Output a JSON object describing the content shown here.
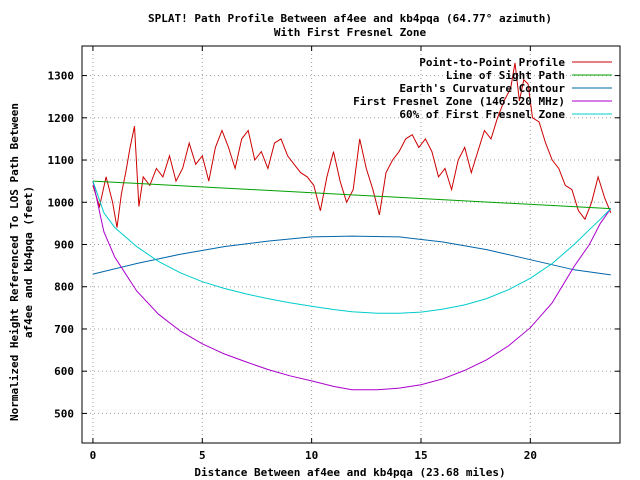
{
  "chart_data": {
    "type": "line",
    "title": "SPLAT! Path Profile Between af4ee and kb4pqa (64.77° azimuth)",
    "subtitle": "With First Fresnel Zone",
    "xlabel": "Distance Between af4ee and kb4pqa (23.68 miles)",
    "ylabel_line1": "Normalized Height Referenced To LOS Path Between",
    "ylabel_line2": "af4ee and kb4pqa (feet)",
    "xlim": [
      -0.5,
      24.1
    ],
    "ylim": [
      430,
      1370
    ],
    "x_ticks": [
      0,
      5,
      10,
      15,
      20
    ],
    "y_ticks": [
      500,
      600,
      700,
      800,
      900,
      1000,
      1100,
      1200,
      1300
    ],
    "grid": true,
    "legend_position": "top-right",
    "series": [
      {
        "name": "Point-to-Point Profile",
        "color": "#cc0000",
        "x": [
          0,
          0.3,
          0.6,
          0.9,
          1.1,
          1.3,
          1.5,
          1.7,
          1.9,
          2.1,
          2.3,
          2.6,
          2.9,
          3.2,
          3.5,
          3.8,
          4.1,
          4.4,
          4.7,
          5.0,
          5.3,
          5.6,
          5.9,
          6.2,
          6.5,
          6.8,
          7.1,
          7.4,
          7.7,
          8.0,
          8.3,
          8.6,
          8.9,
          9.2,
          9.5,
          9.8,
          10.1,
          10.4,
          10.7,
          11.0,
          11.3,
          11.6,
          11.9,
          12.2,
          12.5,
          12.8,
          13.1,
          13.4,
          13.7,
          14.0,
          14.3,
          14.6,
          14.9,
          15.2,
          15.5,
          15.8,
          16.1,
          16.4,
          16.7,
          17.0,
          17.3,
          17.6,
          17.9,
          18.2,
          18.5,
          18.8,
          19.1,
          19.3,
          19.5,
          19.7,
          19.9,
          20.1,
          20.4,
          20.7,
          21.0,
          21.3,
          21.6,
          21.9,
          22.2,
          22.5,
          22.8,
          23.1,
          23.4,
          23.68
        ],
        "y": [
          1040,
          990,
          1060,
          1000,
          940,
          1020,
          1070,
          1130,
          1180,
          990,
          1060,
          1040,
          1080,
          1060,
          1110,
          1050,
          1080,
          1140,
          1090,
          1110,
          1050,
          1130,
          1170,
          1130,
          1080,
          1150,
          1170,
          1100,
          1120,
          1080,
          1140,
          1150,
          1110,
          1090,
          1070,
          1060,
          1040,
          980,
          1060,
          1120,
          1050,
          1000,
          1030,
          1150,
          1080,
          1030,
          970,
          1070,
          1100,
          1120,
          1150,
          1160,
          1130,
          1150,
          1120,
          1060,
          1080,
          1030,
          1100,
          1130,
          1070,
          1120,
          1170,
          1150,
          1200,
          1240,
          1270,
          1330,
          1240,
          1290,
          1280,
          1200,
          1190,
          1140,
          1100,
          1080,
          1040,
          1030,
          980,
          960,
          1000,
          1060,
          1010,
          975
        ]
      },
      {
        "name": "Line of Sight Path",
        "color": "#00a000",
        "x": [
          0,
          23.68
        ],
        "y": [
          1050,
          985
        ]
      },
      {
        "name": "Earth's Curvature Contour",
        "color": "#0066aa",
        "x": [
          0,
          2,
          4,
          6,
          8,
          10,
          11.84,
          14,
          16,
          18,
          20,
          22,
          23.68
        ],
        "y": [
          830,
          855,
          877,
          895,
          908,
          918,
          920,
          918,
          906,
          888,
          864,
          840,
          828
        ]
      },
      {
        "name": "First Fresnel Zone (146.520 MHz)",
        "color": "#aa00cc",
        "x": [
          0,
          0.5,
          1,
          2,
          3,
          4,
          5,
          6,
          7,
          8,
          9,
          10,
          11,
          11.84,
          13,
          14,
          15,
          16,
          17,
          18,
          19,
          20,
          21,
          22,
          22.7,
          23.2,
          23.68
        ],
        "y": [
          1050,
          930,
          870,
          790,
          735,
          695,
          665,
          641,
          622,
          604,
          589,
          577,
          564,
          556,
          556,
          560,
          568,
          582,
          602,
          627,
          660,
          703,
          762,
          848,
          900,
          950,
          985
        ]
      },
      {
        "name": "60% of First Fresnel Zone",
        "color": "#00cccc",
        "x": [
          0,
          0.5,
          1,
          2,
          3,
          4,
          5,
          6,
          7,
          8,
          9,
          10,
          11,
          11.84,
          13,
          14,
          15,
          16,
          17,
          18,
          19,
          20,
          21,
          22,
          22.7,
          23.2,
          23.68
        ],
        "y": [
          1050,
          975,
          940,
          895,
          860,
          833,
          812,
          796,
          783,
          772,
          762,
          754,
          746,
          741,
          737,
          737,
          740,
          747,
          757,
          772,
          793,
          820,
          855,
          900,
          935,
          960,
          985
        ]
      }
    ]
  }
}
